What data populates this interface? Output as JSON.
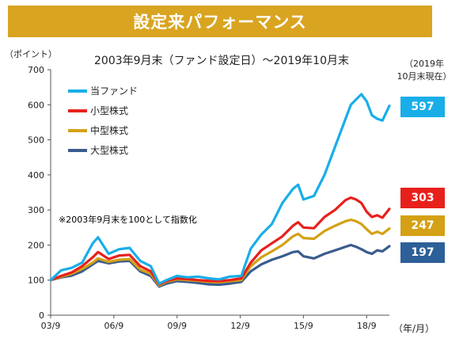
{
  "banner": {
    "title": "設定来パフォーマンス"
  },
  "header": {
    "subtitle": "2003年9月末（ファンド設定日）～2019年10月末",
    "y_unit": "（ポイント）",
    "period_label_line1": "（2019年",
    "period_label_line2": "10月末現在）",
    "x_unit": "（年/月）"
  },
  "note": "※2003年9月末を100として指数化",
  "colors": {
    "fund": "#19aee8",
    "small_cap": "#e8201c",
    "mid_cap": "#d4a015",
    "large_cap": "#3a5c8e",
    "banner": "#d9a420",
    "badge_large": "#2d5f98"
  },
  "chart_data": {
    "type": "line",
    "title": "2003年9月末（ファンド設定日）～2019年10月末",
    "ylabel": "（ポイント）",
    "xlabel": "（年/月）",
    "ylim": [
      0,
      700
    ],
    "yticks": [
      0,
      100,
      200,
      300,
      400,
      500,
      600,
      700
    ],
    "xticks": [
      "03/9",
      "06/9",
      "09/9",
      "12/9",
      "15/9",
      "18/9"
    ],
    "xlim": [
      2003.75,
      2019.83
    ],
    "legend_position": "top-left",
    "grid": false,
    "x": [
      2003.75,
      2004.25,
      2004.75,
      2005.25,
      2005.75,
      2006.0,
      2006.5,
      2007.0,
      2007.5,
      2008.0,
      2008.5,
      2008.9,
      2009.25,
      2009.75,
      2010.25,
      2010.75,
      2011.25,
      2011.75,
      2012.25,
      2012.8,
      2013.25,
      2013.75,
      2014.25,
      2014.75,
      2015.25,
      2015.5,
      2015.75,
      2016.25,
      2016.75,
      2017.25,
      2017.75,
      2018.0,
      2018.25,
      2018.5,
      2018.75,
      2019.0,
      2019.25,
      2019.5,
      2019.83
    ],
    "series": [
      {
        "name": "当ファンド",
        "end_value": 597,
        "values": [
          100,
          128,
          135,
          150,
          205,
          222,
          175,
          188,
          192,
          155,
          140,
          90,
          100,
          112,
          108,
          110,
          105,
          102,
          110,
          112,
          190,
          230,
          260,
          320,
          360,
          372,
          330,
          340,
          400,
          480,
          560,
          600,
          615,
          630,
          610,
          570,
          560,
          555,
          597
        ]
      },
      {
        "name": "小型株式",
        "end_value": 303,
        "values": [
          100,
          112,
          122,
          140,
          165,
          180,
          160,
          170,
          172,
          140,
          125,
          88,
          97,
          105,
          103,
          100,
          98,
          97,
          100,
          105,
          150,
          185,
          205,
          225,
          255,
          265,
          250,
          248,
          280,
          300,
          328,
          335,
          330,
          320,
          295,
          280,
          285,
          278,
          303
        ]
      },
      {
        "name": "中型株式",
        "end_value": 247,
        "values": [
          100,
          110,
          118,
          132,
          150,
          162,
          152,
          158,
          160,
          130,
          118,
          85,
          95,
          102,
          100,
          98,
          95,
          94,
          97,
          100,
          140,
          165,
          182,
          200,
          225,
          232,
          220,
          218,
          240,
          255,
          268,
          272,
          268,
          260,
          245,
          232,
          238,
          232,
          247
        ]
      },
      {
        "name": "大型株式",
        "end_value": 197,
        "values": [
          100,
          108,
          113,
          125,
          145,
          155,
          148,
          153,
          155,
          125,
          112,
          82,
          90,
          97,
          95,
          92,
          88,
          87,
          90,
          95,
          125,
          145,
          158,
          168,
          180,
          182,
          168,
          162,
          175,
          185,
          195,
          200,
          195,
          188,
          180,
          175,
          185,
          182,
          197
        ]
      }
    ]
  }
}
